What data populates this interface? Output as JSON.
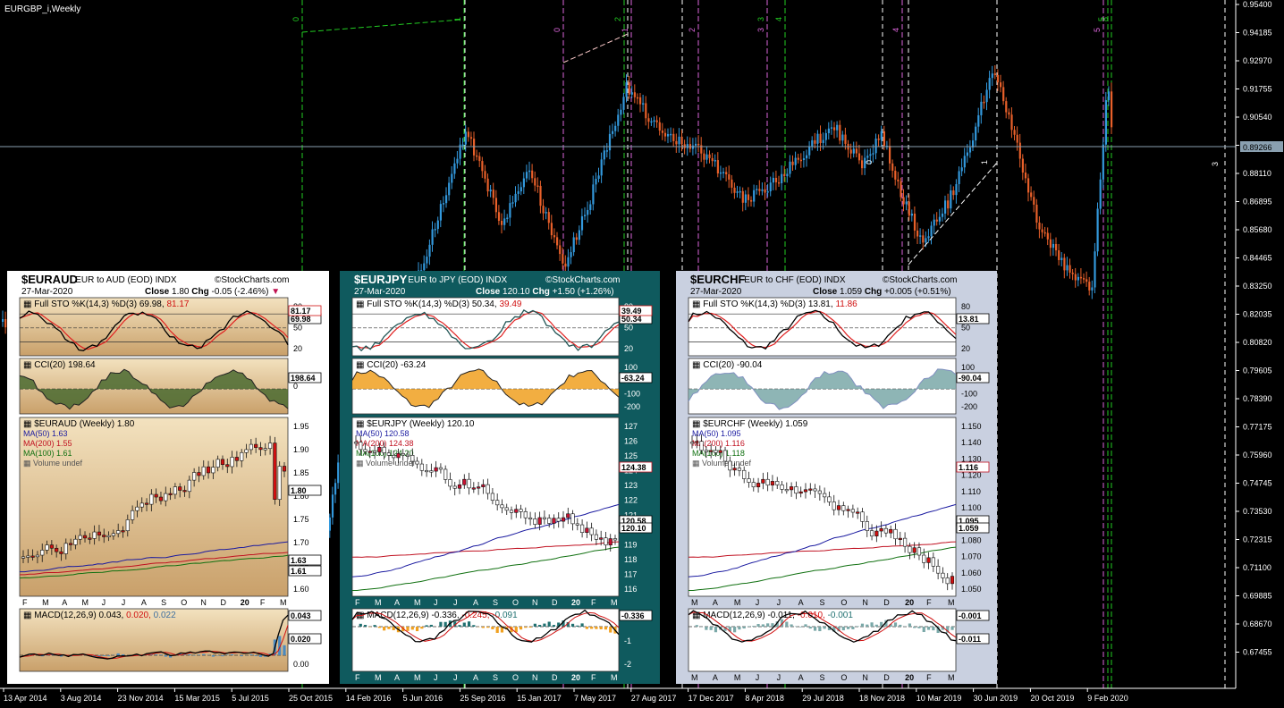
{
  "window": {
    "title": "EURGBP_i,Weekly"
  },
  "colors": {
    "bull": "#3399dd",
    "bear": "#e8602a",
    "grid_line": "#8aa0b0",
    "green_line": "#22cc22",
    "pink_line": "#dd66dd",
    "white_line": "#ffffff"
  },
  "price_axis": {
    "labels": [
      "0.95400",
      "0.94185",
      "0.92970",
      "0.91755",
      "0.90540",
      "0.89266",
      "0.88110",
      "0.86895",
      "0.85680",
      "0.84465",
      "0.83250",
      "0.82035",
      "0.80820",
      "0.79605",
      "0.78390",
      "0.77175",
      "0.75960",
      "0.74745",
      "0.73530",
      "0.72315",
      "0.71100",
      "0.69885",
      "0.68670",
      "0.67455"
    ],
    "current_price": "0.89266"
  },
  "time_axis": {
    "labels": [
      "13 Apr 2014",
      "3 Aug 2014",
      "23 Nov 2014",
      "15 Mar 2015",
      "5 Jul 2015",
      "25 Oct 2015",
      "14 Feb 2016",
      "5 Jun 2016",
      "25 Sep 2016",
      "15 Jan 2017",
      "7 May 2017",
      "27 Aug 2017",
      "17 Dec 2017",
      "8 Apr 2018",
      "29 Jul 2018",
      "18 Nov 2018",
      "10 Mar 2019",
      "30 Jun 2019",
      "20 Oct 2019",
      "9 Feb 2020"
    ]
  },
  "cycle_markers": {
    "green": [
      "0",
      "1",
      "2",
      "3",
      "4",
      "5",
      "8"
    ],
    "pink": [
      "0",
      "1",
      "2",
      "3",
      "4",
      "5"
    ],
    "white": [
      "0",
      "1",
      "2",
      "3",
      "4",
      "5",
      "8"
    ]
  },
  "right_marker": "3",
  "line_labels": [
    "0",
    "1"
  ],
  "panels": [
    {
      "symbol": "$EURAUD",
      "desc": "EUR to AUD (EOD)",
      "exchange": "INDX",
      "brand": "©StockCharts.com",
      "date": "27-Mar-2020",
      "close_label": "Close",
      "close": "1.80",
      "chg_label": "Chg",
      "chg": "-0.05 (-2.46%)",
      "chg_arrow": "▼",
      "sto": {
        "label": "Full STO %K(14,3) %D(3) 69.98,",
        "d": "81.17",
        "ticks": [
          "80",
          "50",
          "20"
        ],
        "k_tag": "69.98",
        "d_tag": "81.17"
      },
      "cci": {
        "label": "CCI(20) 198.64",
        "ticks": [
          "0"
        ],
        "tag": "198.64"
      },
      "price": {
        "label": "$EURAUD (Weekly) 1.80",
        "ma50": "MA(50) 1.63",
        "ma200": "MA(200) 1.55",
        "ma100": "MA(100) 1.61",
        "vol": "Volume undef",
        "ticks": [
          "1.95",
          "1.90",
          "1.85",
          "1.80",
          "1.75",
          "1.70",
          "1.65",
          "1.60"
        ],
        "tags": [
          "1.80",
          "1.63",
          "1.61"
        ]
      },
      "months": [
        "F",
        "M",
        "A",
        "M",
        "J",
        "J",
        "A",
        "S",
        "O",
        "N",
        "D",
        "20",
        "F",
        "M"
      ],
      "macd": {
        "label": "MACD(12,26,9) 0.043,",
        "signal": "0.020,",
        "hist": "0.022",
        "ticks": [
          "0.04",
          "0.02",
          "0.00"
        ],
        "tags": [
          "0.043",
          "0.020"
        ]
      }
    },
    {
      "symbol": "$EURJPY",
      "desc": "EUR to JPY (EOD)",
      "exchange": "INDX",
      "brand": "©StockCharts.com",
      "date": "27-Mar-2020",
      "close_label": "Close",
      "close": "120.10",
      "chg_label": "Chg",
      "chg": "+1.50 (+1.26%)",
      "chg_arrow": "",
      "sto": {
        "label": "Full STO %K(14,3) %D(3) 50.34,",
        "d": "39.49",
        "ticks": [
          "80",
          "50",
          "20"
        ],
        "k_tag": "50.34",
        "d_tag": "39.49"
      },
      "cci": {
        "label": "CCI(20) -63.24",
        "ticks": [
          "100",
          "0",
          "-100",
          "-200"
        ],
        "tag": "-63.24"
      },
      "price": {
        "label": "$EURJPY (Weekly) 120.10",
        "ma50": "MA(50) 120.58",
        "ma200": "MA(200) 124.38",
        "ma100": "MA(100) 124.20",
        "vol": "Volume undef",
        "ticks": [
          "127",
          "126",
          "125",
          "124",
          "123",
          "122",
          "121",
          "120",
          "119",
          "118",
          "117",
          "116"
        ],
        "tags": [
          "124.38",
          "120.58",
          "120.10"
        ]
      },
      "months": [
        "F",
        "M",
        "A",
        "M",
        "J",
        "J",
        "A",
        "S",
        "O",
        "N",
        "D",
        "20",
        "F",
        "M"
      ],
      "macd": {
        "label": "MACD(12,26,9) -0.336,",
        "signal": "-0.245,",
        "hist": "-0.091",
        "ticks": [
          "0",
          "-1",
          "-2"
        ],
        "tags": [
          "-0.336"
        ]
      }
    },
    {
      "symbol": "$EURCHF",
      "desc": "EUR to CHF (EOD)",
      "exchange": "INDX",
      "brand": "©StockCharts.com",
      "date": "27-Mar-2020",
      "close_label": "Close",
      "close": "1.059",
      "chg_label": "Chg",
      "chg": "+0.005 (+0.51%)",
      "chg_arrow": "",
      "sto": {
        "label": "Full STO %K(14,3) %D(3) 13.81,",
        "d": "11.86",
        "ticks": [
          "80",
          "50",
          "20"
        ],
        "k_tag": "13.81",
        "d_tag": ""
      },
      "cci": {
        "label": "CCI(20) -90.04",
        "ticks": [
          "100",
          "0",
          "-100",
          "-200"
        ],
        "tag": "-90.04"
      },
      "price": {
        "label": "$EURCHF (Weekly) 1.059",
        "ma50": "MA(50) 1.095",
        "ma200": "MA(200) 1.116",
        "ma100": "MA(100) 1.118",
        "vol": "Volume undef",
        "ticks": [
          "1.150",
          "1.140",
          "1.130",
          "1.120",
          "1.110",
          "1.100",
          "1.090",
          "1.080",
          "1.070",
          "1.060",
          "1.050"
        ],
        "tags": [
          "1.116",
          "1.095",
          "1.059"
        ]
      },
      "months": [
        "M",
        "A",
        "M",
        "J",
        "J",
        "A",
        "S",
        "O",
        "N",
        "D",
        "20",
        "F",
        "M"
      ],
      "macd": {
        "label": "MACD(12,26,9) -0.011,",
        "signal": "-0.010,",
        "hist": "-0.001",
        "ticks": [
          "0.000"
        ],
        "tags": [
          "-0.001",
          "-0.011"
        ]
      }
    }
  ]
}
